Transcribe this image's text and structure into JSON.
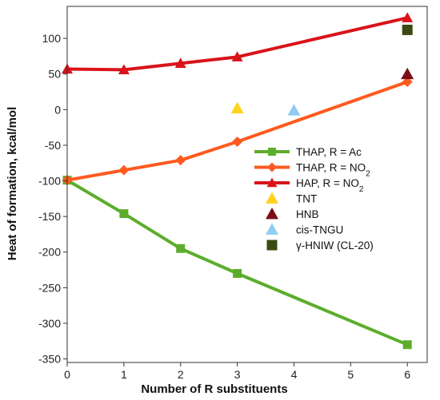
{
  "chart_data": {
    "type": "line",
    "xlabel": "Number of R substituents",
    "ylabel": "Heat of formation, kcal/mol",
    "xlim": [
      0,
      6.35
    ],
    "ylim": [
      -355,
      145
    ],
    "x_ticks": [
      0,
      1,
      2,
      3,
      4,
      5,
      6
    ],
    "y_ticks": [
      -350,
      -300,
      -250,
      -200,
      -150,
      -100,
      -50,
      0,
      50,
      100
    ],
    "grid": false,
    "legend_position": "center-right",
    "series": [
      {
        "name": "THAP, R = Ac",
        "name_main": "THAP, R = Ac",
        "name_sub": "",
        "kind": "line",
        "marker": "square",
        "color": "#5cad2c",
        "x": [
          0,
          1,
          2,
          3,
          6
        ],
        "y": [
          -99,
          -146,
          -195,
          -230,
          -330
        ]
      },
      {
        "name": "THAP, R = NO2",
        "name_main": "THAP, R = NO",
        "name_sub": "2",
        "kind": "line",
        "marker": "diamond",
        "color": "#ff5a1f",
        "x": [
          0,
          1,
          2,
          3,
          6
        ],
        "y": [
          -99,
          -85,
          -71,
          -45,
          39
        ]
      },
      {
        "name": "HAP, R = NO2",
        "name_main": "HAP, R = NO",
        "name_sub": "2",
        "kind": "line",
        "marker": "triangle",
        "color": "#d9131a",
        "x": [
          0,
          1,
          2,
          3,
          6
        ],
        "y": [
          57,
          56,
          65,
          74,
          129
        ]
      },
      {
        "name": "TNT",
        "name_main": "TNT",
        "name_sub": "",
        "kind": "point",
        "marker": "triangle",
        "color": "#ffd21f",
        "x": [
          3
        ],
        "y": [
          2
        ]
      },
      {
        "name": "HNB",
        "name_main": "HNB",
        "name_sub": "",
        "kind": "point",
        "marker": "triangle",
        "color": "#7a0e16",
        "x": [
          6
        ],
        "y": [
          50
        ]
      },
      {
        "name": "cis-TNGU",
        "name_main": "cis-TNGU",
        "name_sub": "",
        "kind": "point",
        "marker": "triangle",
        "color": "#8fcdf2",
        "x": [
          4
        ],
        "y": [
          -1
        ]
      },
      {
        "name": "γ-HNIW (CL-20)",
        "name_main": "γ-HNIW (CL-20)",
        "name_sub": "",
        "kind": "point",
        "marker": "square",
        "color": "#3b4a12",
        "x": [
          6
        ],
        "y": [
          112
        ]
      }
    ]
  }
}
